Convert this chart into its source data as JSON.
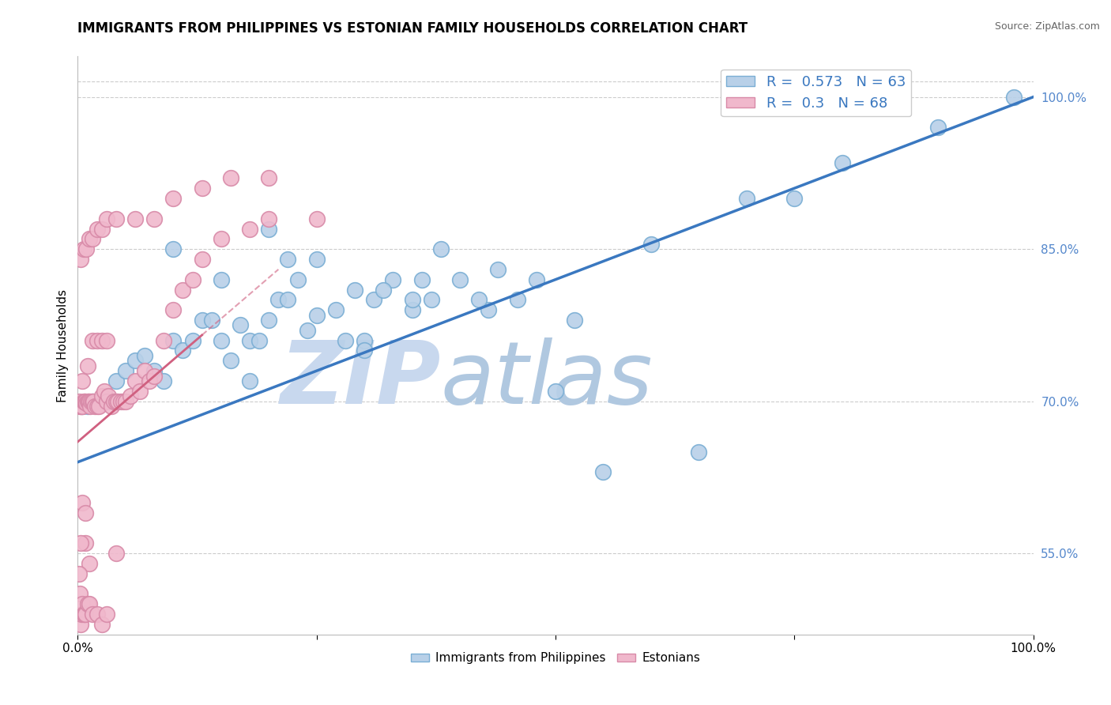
{
  "title": "IMMIGRANTS FROM PHILIPPINES VS ESTONIAN FAMILY HOUSEHOLDS CORRELATION CHART",
  "source_text": "Source: ZipAtlas.com",
  "ylabel": "Family Households",
  "xlim": [
    0.0,
    1.0
  ],
  "ylim": [
    0.47,
    1.04
  ],
  "right_yticks": [
    0.55,
    0.7,
    0.85,
    1.0
  ],
  "right_yticklabels": [
    "55.0%",
    "70.0%",
    "85.0%",
    "100.0%"
  ],
  "blue_R": 0.573,
  "blue_N": 63,
  "pink_R": 0.3,
  "pink_N": 68,
  "blue_color": "#b8d0e8",
  "blue_edge": "#7aaed4",
  "pink_color": "#f0b8cc",
  "pink_edge": "#d88aa8",
  "blue_line_color": "#3a78c0",
  "pink_line_color": "#d06080",
  "grid_color": "#cccccc",
  "watermark_color_zip": "#c8d8ee",
  "watermark_color_atlas": "#b0c8e0",
  "watermark_text_zip": "ZIP",
  "watermark_text_atlas": "atlas",
  "blue_scatter_x": [
    0.005,
    0.01,
    0.015,
    0.02,
    0.025,
    0.03,
    0.04,
    0.05,
    0.06,
    0.07,
    0.08,
    0.09,
    0.1,
    0.11,
    0.12,
    0.13,
    0.14,
    0.15,
    0.16,
    0.17,
    0.18,
    0.19,
    0.2,
    0.21,
    0.22,
    0.23,
    0.25,
    0.27,
    0.29,
    0.31,
    0.33,
    0.35,
    0.37,
    0.4,
    0.43,
    0.46,
    0.5,
    0.55,
    0.38,
    0.2,
    0.25,
    0.3,
    0.35,
    0.1,
    0.15,
    0.22,
    0.28,
    0.18,
    0.24,
    0.3,
    0.42,
    0.6,
    0.7,
    0.8,
    0.9,
    0.98,
    0.65,
    0.75,
    0.32,
    0.36,
    0.44,
    0.48,
    0.52
  ],
  "blue_scatter_y": [
    0.695,
    0.695,
    0.7,
    0.7,
    0.698,
    0.7,
    0.72,
    0.73,
    0.74,
    0.745,
    0.73,
    0.72,
    0.76,
    0.75,
    0.76,
    0.78,
    0.78,
    0.76,
    0.74,
    0.775,
    0.76,
    0.76,
    0.78,
    0.8,
    0.8,
    0.82,
    0.785,
    0.79,
    0.81,
    0.8,
    0.82,
    0.79,
    0.8,
    0.82,
    0.79,
    0.8,
    0.71,
    0.63,
    0.85,
    0.87,
    0.84,
    0.76,
    0.8,
    0.85,
    0.82,
    0.84,
    0.76,
    0.72,
    0.77,
    0.75,
    0.8,
    0.855,
    0.9,
    0.935,
    0.97,
    1.0,
    0.65,
    0.9,
    0.81,
    0.82,
    0.83,
    0.82,
    0.78
  ],
  "pink_scatter_x": [
    0.001,
    0.002,
    0.003,
    0.004,
    0.005,
    0.006,
    0.007,
    0.008,
    0.009,
    0.01,
    0.011,
    0.012,
    0.013,
    0.014,
    0.015,
    0.016,
    0.018,
    0.02,
    0.022,
    0.025,
    0.028,
    0.03,
    0.032,
    0.035,
    0.038,
    0.04,
    0.042,
    0.045,
    0.048,
    0.05,
    0.055,
    0.06,
    0.065,
    0.07,
    0.075,
    0.08,
    0.09,
    0.1,
    0.11,
    0.12,
    0.13,
    0.15,
    0.18,
    0.2,
    0.25,
    0.005,
    0.01,
    0.015,
    0.02,
    0.025,
    0.03,
    0.003,
    0.006,
    0.009,
    0.012,
    0.015,
    0.02,
    0.025,
    0.03,
    0.04,
    0.06,
    0.08,
    0.1,
    0.13,
    0.16,
    0.2,
    0.008,
    0.012
  ],
  "pink_scatter_y": [
    0.7,
    0.695,
    0.695,
    0.695,
    0.695,
    0.7,
    0.7,
    0.7,
    0.698,
    0.7,
    0.7,
    0.7,
    0.695,
    0.7,
    0.7,
    0.7,
    0.695,
    0.695,
    0.695,
    0.705,
    0.71,
    0.7,
    0.705,
    0.695,
    0.7,
    0.7,
    0.7,
    0.7,
    0.7,
    0.7,
    0.705,
    0.72,
    0.71,
    0.73,
    0.72,
    0.725,
    0.76,
    0.79,
    0.81,
    0.82,
    0.84,
    0.86,
    0.87,
    0.88,
    0.88,
    0.72,
    0.735,
    0.76,
    0.76,
    0.76,
    0.76,
    0.84,
    0.85,
    0.85,
    0.86,
    0.86,
    0.87,
    0.87,
    0.88,
    0.88,
    0.88,
    0.88,
    0.9,
    0.91,
    0.92,
    0.92,
    0.56,
    0.54
  ],
  "pink_below_x": [
    0.001,
    0.002,
    0.003,
    0.004,
    0.005,
    0.006,
    0.007,
    0.008,
    0.01,
    0.012,
    0.015,
    0.02,
    0.025,
    0.03,
    0.04,
    0.003,
    0.005,
    0.008
  ],
  "pink_below_y": [
    0.53,
    0.51,
    0.48,
    0.49,
    0.5,
    0.49,
    0.49,
    0.49,
    0.5,
    0.5,
    0.49,
    0.49,
    0.48,
    0.49,
    0.55,
    0.56,
    0.6,
    0.59
  ],
  "blue_line_x0": 0.0,
  "blue_line_x1": 1.0,
  "blue_line_y0": 0.64,
  "blue_line_y1": 1.0,
  "pink_line_x0": 0.0,
  "pink_line_x1": 0.21,
  "pink_line_y0": 0.66,
  "pink_line_y1": 0.83
}
